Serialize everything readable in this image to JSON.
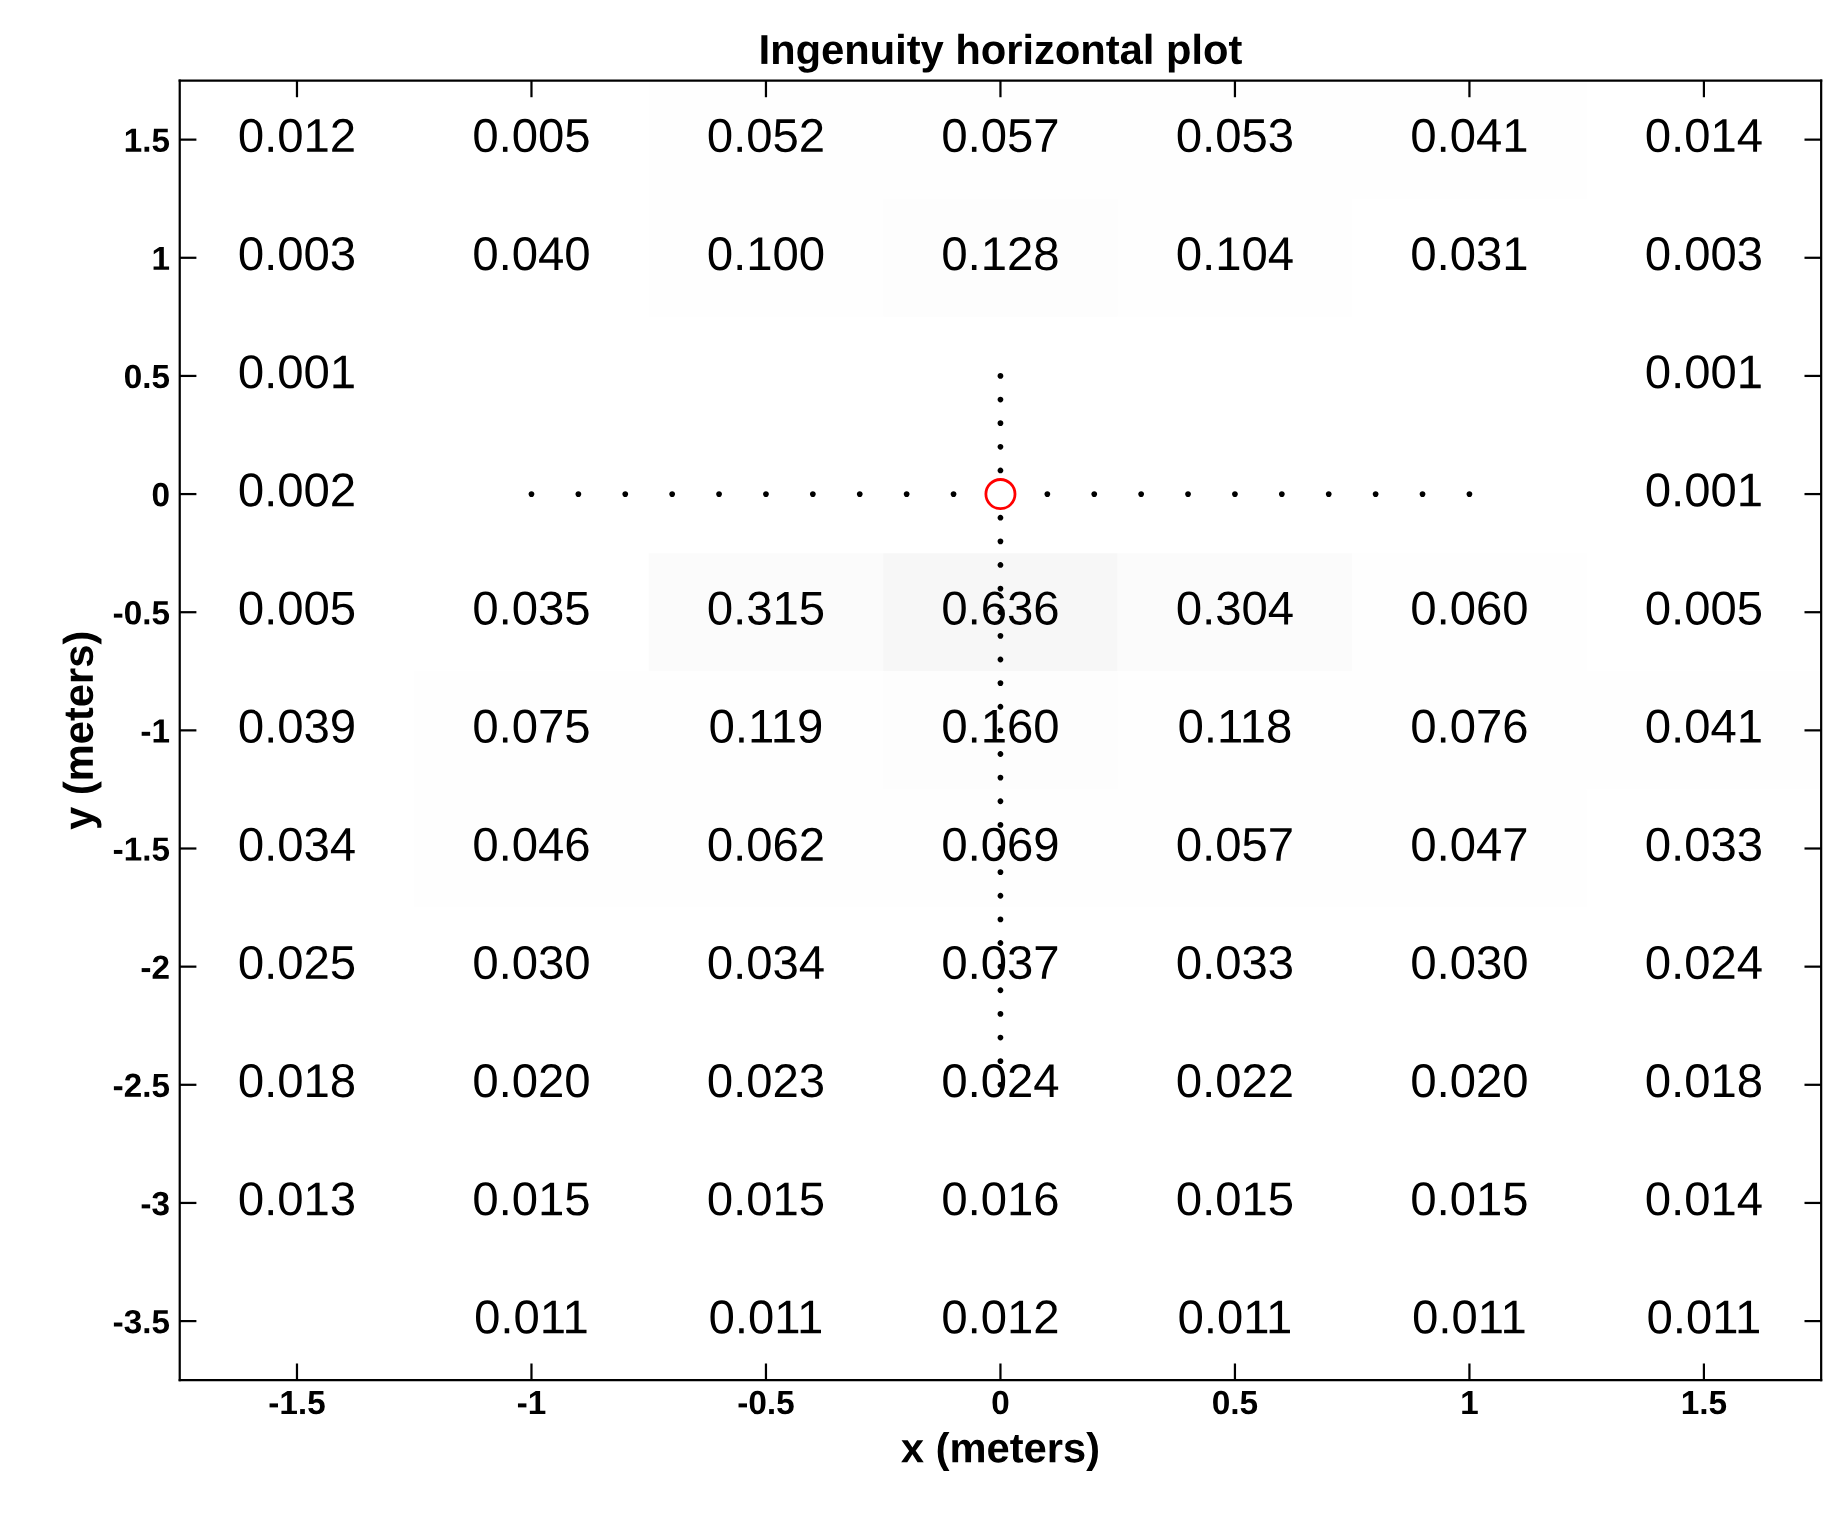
{
  "chart_data": {
    "type": "heatmap",
    "title": "Ingenuity horizontal plot",
    "xlabel": "x (meters)",
    "ylabel": "y (meters)",
    "categories": [
      "-1.5",
      "-1",
      "-0.5",
      "0",
      "0.5",
      "1",
      "1.5"
    ],
    "y_categories": [
      "1.5",
      "1",
      "0.5",
      "0",
      "-0.5",
      "-1",
      "-1.5",
      "-2",
      "-2.5",
      "-3",
      "-3.5"
    ],
    "cells": [
      [
        0.012,
        0.005,
        0.052,
        0.057,
        0.053,
        0.041,
        0.014
      ],
      [
        0.003,
        0.04,
        0.1,
        0.128,
        0.104,
        0.031,
        0.003
      ],
      [
        0.001,
        null,
        null,
        null,
        null,
        null,
        0.001
      ],
      [
        0.002,
        null,
        null,
        null,
        null,
        null,
        0.001
      ],
      [
        0.005,
        0.035,
        0.315,
        0.636,
        0.304,
        0.06,
        0.005
      ],
      [
        0.039,
        0.075,
        0.119,
        0.16,
        0.118,
        0.076,
        0.041
      ],
      [
        0.034,
        0.046,
        0.062,
        0.069,
        0.057,
        0.047,
        0.033
      ],
      [
        0.025,
        0.03,
        0.034,
        0.037,
        0.033,
        0.03,
        0.024
      ],
      [
        0.018,
        0.02,
        0.023,
        0.024,
        0.022,
        0.02,
        0.018
      ],
      [
        0.013,
        0.015,
        0.015,
        0.016,
        0.015,
        0.015,
        0.014
      ],
      [
        null,
        0.011,
        0.011,
        0.012,
        0.011,
        0.011,
        0.011
      ]
    ],
    "cell_labels": [
      [
        "0.012",
        "0.005",
        "0.052",
        "0.057",
        "0.053",
        "0.041",
        "0.014"
      ],
      [
        "0.003",
        "0.040",
        "0.100",
        "0.128",
        "0.104",
        "0.031",
        "0.003"
      ],
      [
        "0.001",
        null,
        null,
        null,
        null,
        null,
        "0.001"
      ],
      [
        "0.002",
        null,
        null,
        null,
        null,
        null,
        "0.001"
      ],
      [
        "0.005",
        "0.035",
        "0.315",
        "0.636",
        "0.304",
        "0.060",
        "0.005"
      ],
      [
        "0.039",
        "0.075",
        "0.119",
        "0.160",
        "0.118",
        "0.076",
        "0.041"
      ],
      [
        "0.034",
        "0.046",
        "0.062",
        "0.069",
        "0.057",
        "0.047",
        "0.033"
      ],
      [
        "0.025",
        "0.030",
        "0.034",
        "0.037",
        "0.033",
        "0.030",
        "0.024"
      ],
      [
        "0.018",
        "0.020",
        "0.023",
        "0.024",
        "0.022",
        "0.020",
        "0.018"
      ],
      [
        "0.013",
        "0.015",
        "0.015",
        "0.016",
        "0.015",
        "0.015",
        "0.014"
      ],
      [
        null,
        "0.011",
        "0.011",
        "0.012",
        "0.011",
        "0.011",
        "0.011"
      ]
    ]
  }
}
